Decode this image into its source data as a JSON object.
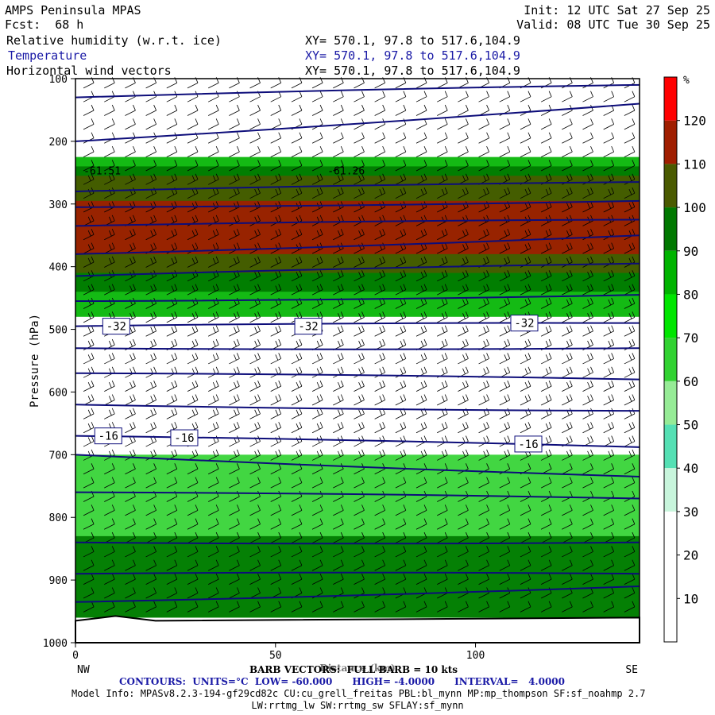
{
  "header": {
    "model": "AMPS Peninsula MPAS",
    "fcst": "Fcst:  68 h",
    "init": "Init: 12 UTC Sat 27 Sep 25",
    "valid": "Valid: 08 UTC Tue 30 Sep 25",
    "fields": [
      {
        "name": "Relative humidity (w.r.t. ice)",
        "xy": "XY= 570.1, 97.8 to 517.6,104.9",
        "color": "#000000"
      },
      {
        "name": "Temperature",
        "xy": "XY= 570.1, 97.8 to 517.6,104.9",
        "color": "#1a1aa6"
      },
      {
        "name": "Horizontal wind vectors",
        "xy": "XY= 570.1, 97.8 to 517.6,104.9",
        "color": "#000000"
      }
    ]
  },
  "footer": {
    "barb": "BARB VECTORS:  FULL BARB = 10 kts",
    "distance_label": "Distance (km)",
    "contours": "CONTOURS:  UNITS=°C  LOW= -60.000      HIGH= -4.0000      INTERVAL=   4.0000",
    "model_info": "Model Info: MPASv8.2.3-194-gf29cd82c CU:cu_grell_freitas PBL:bl_mynn MP:mp_thompson SF:sf_noahmp 2.7",
    "model_info2": "LW:rrtmg_lw SW:rrtmg_sw SFLAY:sf_mynn"
  },
  "chart_data": {
    "type": "heatmap",
    "xlabel": "Distance (km)",
    "ylabel": "Pressure (hPa)",
    "xlim": [
      0,
      141
    ],
    "ylim": [
      1000,
      100
    ],
    "x_ticks": [
      0,
      50,
      100
    ],
    "y_ticks": [
      100,
      200,
      300,
      400,
      500,
      600,
      700,
      800,
      900,
      1000
    ],
    "x_end_labels": {
      "left": "NW",
      "right": "SE"
    },
    "colorbar": {
      "unit": "%",
      "levels": [
        10,
        20,
        30,
        40,
        50,
        60,
        70,
        80,
        90,
        100,
        110,
        120
      ],
      "colors": [
        "#ffffff",
        "#ffffff",
        "#ffffff",
        "#c8f5dc",
        "#55e0b4",
        "#96eb96",
        "#32d232",
        "#00e600",
        "#00b400",
        "#007800",
        "#4a5a00",
        "#a01e00",
        "#ff0000"
      ]
    },
    "rh_regions": [
      {
        "color": "#00b400",
        "p_top": 225,
        "p_bot": 480
      },
      {
        "color": "#007800",
        "p_top": 240,
        "p_bot": 440
      },
      {
        "color": "#4a5a00",
        "p_top": 255,
        "p_bot": 410
      },
      {
        "color": "#a01e00",
        "p_top": 295,
        "p_bot": 380
      },
      {
        "color": "#32d232",
        "p_top": 700,
        "p_bot": 960
      },
      {
        "color": "#007800",
        "p_top": 830,
        "p_bot": 960
      }
    ],
    "temperature_contour_labels": [
      {
        "x": 10,
        "p": 495,
        "text": "-32"
      },
      {
        "x": 58,
        "p": 495,
        "text": "-32"
      },
      {
        "x": 112,
        "p": 490,
        "text": "-32"
      },
      {
        "x": 8,
        "p": 670,
        "text": "-16"
      },
      {
        "x": 27,
        "p": 673,
        "text": "-16"
      },
      {
        "x": 113,
        "p": 683,
        "text": "-16"
      }
    ],
    "low_labels": [
      {
        "x": 2,
        "p": 253,
        "text": "-61.51"
      },
      {
        "x": 63,
        "p": 253,
        "text": "-61.26"
      }
    ],
    "isotherms": [
      {
        "p_start": 130,
        "p_end": 110
      },
      {
        "p_start": 200,
        "p_end": 140
      },
      {
        "p_start": 280,
        "p_end": 265
      },
      {
        "p_start": 305,
        "p_end": 295
      },
      {
        "p_start": 335,
        "p_end": 325
      },
      {
        "p_start": 380,
        "p_end": 350
      },
      {
        "p_start": 415,
        "p_end": 395
      },
      {
        "p_start": 455,
        "p_end": 445
      },
      {
        "p_start": 495,
        "p_end": 490
      },
      {
        "p_start": 530,
        "p_end": 530
      },
      {
        "p_start": 570,
        "p_end": 580
      },
      {
        "p_start": 620,
        "p_end": 630
      },
      {
        "p_start": 670,
        "p_end": 688
      },
      {
        "p_start": 700,
        "p_end": 735
      },
      {
        "p_start": 760,
        "p_end": 770
      },
      {
        "p_start": 840,
        "p_end": 840
      },
      {
        "p_start": 890,
        "p_end": 890
      },
      {
        "p_start": 935,
        "p_end": 910
      }
    ]
  }
}
